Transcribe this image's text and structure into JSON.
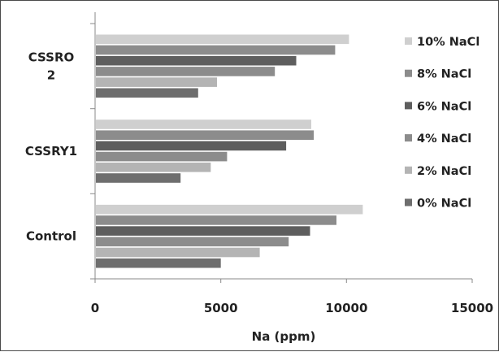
{
  "chart_data": {
    "type": "bar",
    "orientation": "horizontal",
    "categories": [
      "CSSRO 2",
      "CSSRY1",
      "Control"
    ],
    "category_lines": [
      [
        "CSSRO",
        "2"
      ],
      [
        "CSSRY1"
      ],
      [
        "Control"
      ]
    ],
    "series": [
      {
        "name": "10% NaCl",
        "values": [
          10100,
          8600,
          10650
        ],
        "color": "#cfcfcf"
      },
      {
        "name": "8% NaCl",
        "values": [
          9550,
          8700,
          9600
        ],
        "color": "#8c8c8c"
      },
      {
        "name": "6% NaCl",
        "values": [
          8000,
          7600,
          8550
        ],
        "color": "#5e5e5e"
      },
      {
        "name": "4% NaCl",
        "values": [
          7150,
          5250,
          7700
        ],
        "color": "#8c8c8c"
      },
      {
        "name": "2% NaCl",
        "values": [
          4850,
          4600,
          6550
        ],
        "color": "#b4b4b4"
      },
      {
        "name": "0% NaCl",
        "values": [
          4100,
          3400,
          5000
        ],
        "color": "#6e6e6e"
      }
    ],
    "xlabel": "Na (ppm)",
    "xlim": [
      0,
      15000
    ],
    "xticks": [
      "0",
      "5000",
      "10000",
      "15000"
    ],
    "grid": false,
    "legend_position": "right"
  }
}
